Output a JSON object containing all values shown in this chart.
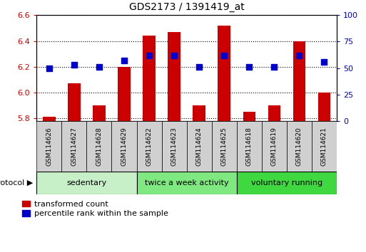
{
  "title": "GDS2173 / 1391419_at",
  "samples": [
    "GSM114626",
    "GSM114627",
    "GSM114628",
    "GSM114629",
    "GSM114622",
    "GSM114623",
    "GSM114624",
    "GSM114625",
    "GSM114618",
    "GSM114619",
    "GSM114620",
    "GSM114621"
  ],
  "red_values": [
    5.81,
    6.07,
    5.9,
    6.2,
    6.44,
    6.47,
    5.9,
    6.52,
    5.85,
    5.9,
    6.4,
    6.0
  ],
  "blue_values": [
    50,
    53,
    51,
    57,
    62,
    62,
    51,
    62,
    51,
    51,
    62,
    56
  ],
  "ylim_left": [
    5.78,
    6.6
  ],
  "ylim_right": [
    0,
    100
  ],
  "yticks_left": [
    5.8,
    6.0,
    6.2,
    6.4,
    6.6
  ],
  "yticks_right": [
    0,
    25,
    50,
    75,
    100
  ],
  "groups": [
    {
      "label": "sedentary",
      "start": 0,
      "end": 4
    },
    {
      "label": "twice a week activity",
      "start": 4,
      "end": 8
    },
    {
      "label": "voluntary running",
      "start": 8,
      "end": 12
    }
  ],
  "group_colors_light": [
    "#d8f5d8",
    "#d8f5d8",
    "#80e880"
  ],
  "bar_color": "#cc0000",
  "dot_color": "#0000cc",
  "background_color": "#ffffff",
  "grid_color": "#000000",
  "tick_color_left": "#cc0000",
  "tick_color_right": "#0000cc",
  "bar_bottom": 5.78,
  "bar_width": 0.5,
  "dot_size": 35,
  "legend_red": "transformed count",
  "legend_blue": "percentile rank within the sample",
  "sample_box_color": "#d0d0d0",
  "protocol_label": "protocol"
}
